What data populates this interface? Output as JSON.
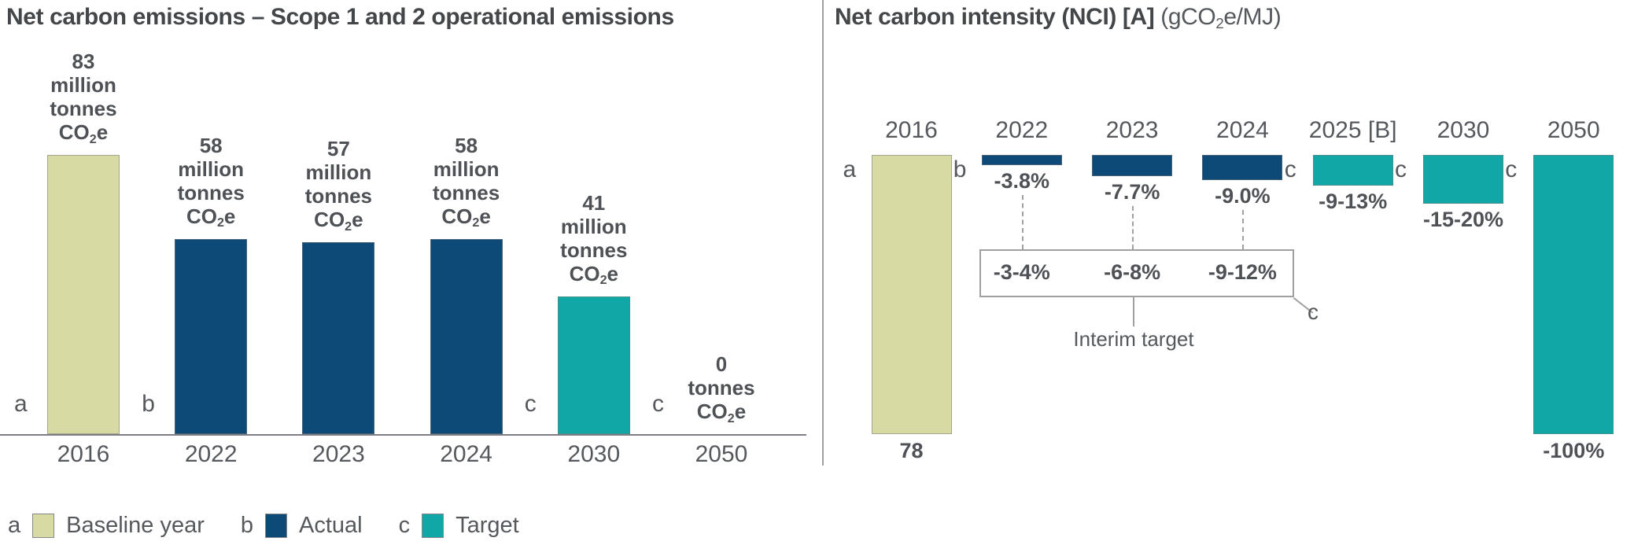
{
  "colors": {
    "baseline": "#d8daa4",
    "actual": "#0d4a77",
    "target": "#12a7a7",
    "text_gray": "#55585c",
    "title_gray": "#44474a",
    "axis_gray": "#7d7f82",
    "line_gray": "#9fa0a2"
  },
  "legend": {
    "items": [
      {
        "letter": "a",
        "role": "baseline",
        "label": "Baseline year"
      },
      {
        "letter": "b",
        "role": "actual",
        "label": "Actual"
      },
      {
        "letter": "c",
        "role": "target",
        "label": "Target"
      }
    ]
  },
  "chart_data": [
    {
      "type": "bar",
      "title": "Net carbon emissions – Scope 1 and 2 operational emissions",
      "unit": "million tonnes CO₂e",
      "categories": [
        "2016",
        "2022",
        "2023",
        "2024",
        "2030",
        "2050"
      ],
      "values": [
        83,
        58,
        57,
        58,
        41,
        0
      ],
      "ylim": [
        0,
        90
      ],
      "grid": false,
      "x_axis_line": true,
      "bar_roles": [
        "baseline",
        "actual",
        "actual",
        "actual",
        "target",
        "target"
      ],
      "bar_letters": [
        "a",
        "b",
        "",
        "",
        "c",
        "c"
      ],
      "bar_label_lines": [
        [
          "83",
          "million",
          "tonnes",
          "CO₂e"
        ],
        [
          "58",
          "million",
          "tonnes",
          "CO₂e"
        ],
        [
          "57",
          "million",
          "tonnes",
          "CO₂e"
        ],
        [
          "58",
          "million",
          "tonnes",
          "CO₂e"
        ],
        [
          "41",
          "million",
          "tonnes",
          "CO₂e"
        ],
        [
          "0",
          "tonnes",
          "CO₂e"
        ]
      ]
    },
    {
      "type": "bar",
      "title": "Net carbon intensity (NCI) [A]",
      "title_unit": "(gCO₂e/MJ)",
      "categories": [
        "2016",
        "2022",
        "2023",
        "2024",
        "2025 [B]",
        "2030",
        "2050"
      ],
      "values_label": [
        "78",
        "-3.8%",
        "-7.7%",
        "-9.0%",
        "-9-13%",
        "-15-20%",
        "-100%"
      ],
      "bar_depth_pct": [
        100,
        3.8,
        7.7,
        9.0,
        11,
        17.5,
        100
      ],
      "baseline_value": 78,
      "grid": false,
      "x_axis_line": false,
      "bar_roles": [
        "baseline",
        "actual",
        "actual",
        "actual",
        "target",
        "target",
        "target"
      ],
      "bar_letters": [
        "a",
        "b",
        "",
        "",
        "c",
        "c",
        "c"
      ],
      "interim": {
        "values": [
          "-3-4%",
          "-6-8%",
          "-9-12%"
        ],
        "applies_to": [
          "2022",
          "2023",
          "2024"
        ],
        "caption": "Interim target",
        "letter": "c"
      }
    }
  ]
}
